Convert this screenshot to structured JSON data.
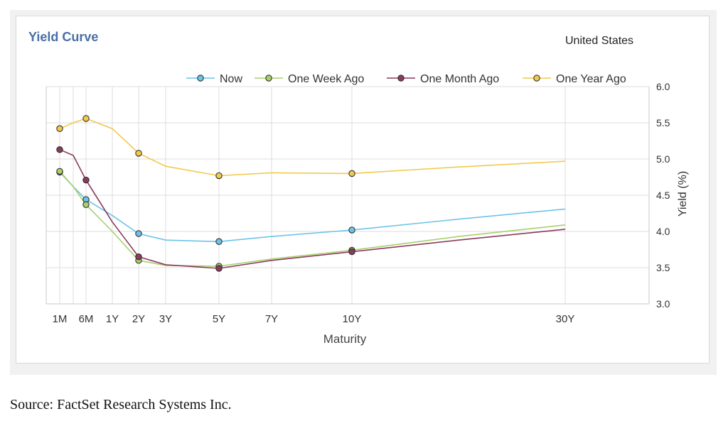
{
  "region": "United States",
  "source": "Source: FactSet Research Systems Inc.",
  "chart_data": {
    "type": "line",
    "title": "Yield Curve",
    "xlabel": "Maturity",
    "ylabel": "Yield (%)",
    "ylim": [
      3.0,
      6.0
    ],
    "yticks": [
      "3.0",
      "3.5",
      "4.0",
      "4.5",
      "5.0",
      "5.5",
      "6.0"
    ],
    "yaxis_side": "right",
    "grid": true,
    "legend_position": "top",
    "x_ticks": [
      {
        "label": "1M",
        "years": 0.0833
      },
      {
        "label": "6M",
        "years": 0.5
      },
      {
        "label": "1Y",
        "years": 1
      },
      {
        "label": "2Y",
        "years": 2
      },
      {
        "label": "3Y",
        "years": 3
      },
      {
        "label": "5Y",
        "years": 5
      },
      {
        "label": "7Y",
        "years": 7
      },
      {
        "label": "10Y",
        "years": 10
      },
      {
        "label": "30Y",
        "years": 30
      }
    ],
    "x_gridlines_years": [
      0.0833,
      0.25,
      0.5,
      1,
      2,
      3,
      5,
      7,
      10,
      30
    ],
    "maturities_years": [
      0.0833,
      0.25,
      0.5,
      1,
      2,
      3,
      5,
      7,
      10,
      20,
      30
    ],
    "series": [
      {
        "name": "Now",
        "color": "#6cc3e8",
        "values": [
          4.82,
          4.62,
          4.44,
          4.22,
          3.97,
          3.88,
          3.86,
          3.93,
          4.02,
          4.17,
          4.31
        ],
        "marker_years": [
          0.0833,
          0.5,
          2,
          5,
          10
        ]
      },
      {
        "name": "One Week Ago",
        "color": "#a8cf6a",
        "values": [
          4.83,
          4.62,
          4.37,
          4.0,
          3.6,
          3.53,
          3.52,
          3.62,
          3.74,
          3.93,
          4.09
        ],
        "marker_years": [
          0.0833,
          0.5,
          2,
          5,
          10
        ]
      },
      {
        "name": "One Month Ago",
        "color": "#8a3a5c",
        "values": [
          5.13,
          5.05,
          4.71,
          4.13,
          3.65,
          3.54,
          3.49,
          3.6,
          3.72,
          3.88,
          4.03
        ],
        "marker_years": [
          0.0833,
          0.5,
          2,
          5,
          10
        ]
      },
      {
        "name": "One Year Ago",
        "color": "#f2c94c",
        "values": [
          5.42,
          5.5,
          5.56,
          5.42,
          5.08,
          4.9,
          4.77,
          4.81,
          4.8,
          4.89,
          4.97
        ],
        "marker_years": [
          0.0833,
          0.5,
          2,
          5,
          10
        ]
      }
    ]
  }
}
